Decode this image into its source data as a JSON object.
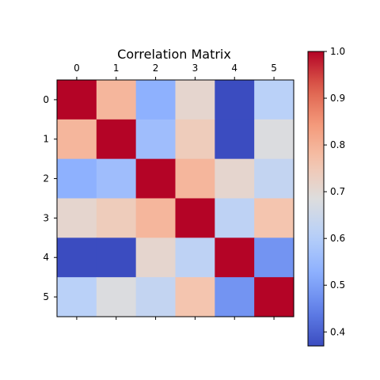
{
  "chart_data": {
    "type": "heatmap",
    "title": "Correlation Matrix",
    "x_categories": [
      "0",
      "1",
      "2",
      "3",
      "4",
      "5"
    ],
    "y_categories": [
      "0",
      "1",
      "2",
      "3",
      "4",
      "5"
    ],
    "x_ticks_position": "top",
    "values": [
      [
        1.0,
        0.79,
        0.53,
        0.71,
        0.37,
        0.61
      ],
      [
        0.79,
        1.0,
        0.56,
        0.74,
        0.37,
        0.68
      ],
      [
        0.53,
        0.56,
        1.0,
        0.79,
        0.71,
        0.63
      ],
      [
        0.71,
        0.74,
        0.79,
        1.0,
        0.62,
        0.76
      ],
      [
        0.37,
        0.37,
        0.71,
        0.62,
        1.0,
        0.48
      ],
      [
        0.61,
        0.68,
        0.63,
        0.76,
        0.48,
        1.0
      ]
    ],
    "colormap": "coolwarm",
    "vmin": 0.37,
    "vmax": 1.0,
    "colorbar": {
      "ticks": [
        "0.4",
        "0.5",
        "0.6",
        "0.7",
        "0.8",
        "0.9",
        "1.0"
      ],
      "placement": "right"
    },
    "grid": false
  }
}
